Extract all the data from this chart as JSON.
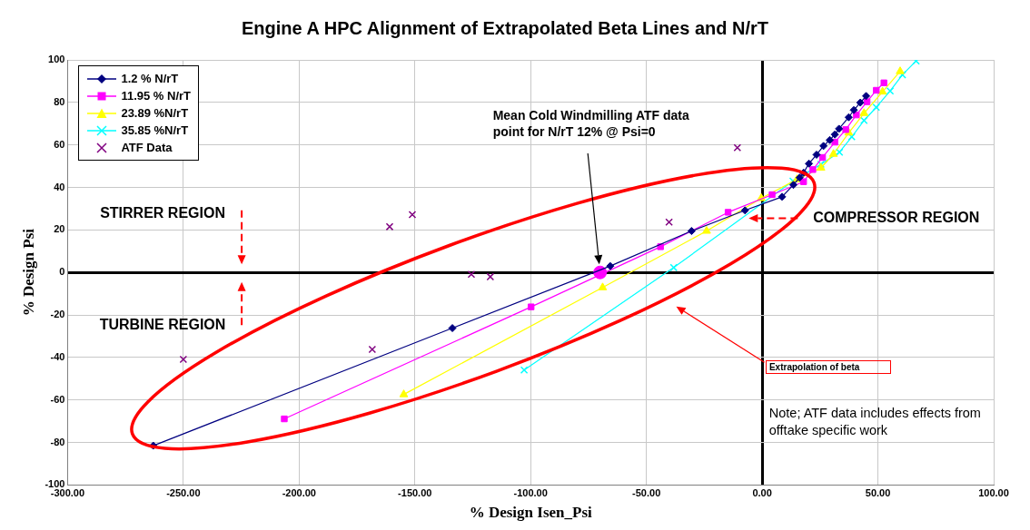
{
  "chart_data": {
    "type": "line",
    "title": "Engine A HPC Alignment of Extrapolated Beta Lines and N/rT",
    "xlabel": "% Design Isen_Psi",
    "ylabel": "% Design Psi",
    "xlim": [
      -300,
      100
    ],
    "ylim": [
      -100,
      100
    ],
    "xticks": [
      {
        "value": -300,
        "label": "-300.00"
      },
      {
        "value": -250,
        "label": "-250.00"
      },
      {
        "value": -200,
        "label": "-200.00"
      },
      {
        "value": -150,
        "label": "-150.00"
      },
      {
        "value": -100,
        "label": "-100.00"
      },
      {
        "value": -50,
        "label": "-50.00"
      },
      {
        "value": 0,
        "label": "0.00"
      },
      {
        "value": 50,
        "label": "50.00"
      },
      {
        "value": 100,
        "label": "100.00"
      }
    ],
    "yticks": [
      -100,
      -80,
      -60,
      -40,
      -20,
      0,
      20,
      40,
      60,
      80,
      100
    ],
    "grid": true,
    "legend": "top left",
    "series": [
      {
        "name": "1.2 % N/rT",
        "type": "line",
        "marker": "diamond",
        "color": "#000080",
        "x": [
          -263,
          -133.8,
          -65.6,
          -30.5,
          -7.4,
          8.6,
          13.5,
          16.2,
          17.9,
          20.2,
          23.5,
          26.5,
          29.2,
          31.4,
          33.2,
          37.4,
          39.6,
          42.4,
          44.9
        ],
        "values": [
          -81.5,
          -26.2,
          3,
          19.5,
          29.2,
          35.6,
          41.2,
          44.6,
          46.9,
          51.2,
          55.4,
          59.5,
          62.3,
          64.9,
          67.6,
          73,
          76.4,
          79.9,
          83
        ]
      },
      {
        "name": "11.95 % N/rT",
        "type": "line",
        "marker": "square",
        "color": "#ff00ff",
        "x": [
          -206.4,
          -99.8,
          -43.9,
          -14.7,
          4.3,
          17.9,
          21.9,
          26.1,
          31.4,
          36.1,
          40.7,
          45.3,
          49.3,
          52.6
        ],
        "values": [
          -68.9,
          -16.2,
          12.1,
          28.3,
          36.6,
          42.7,
          48.4,
          54.1,
          61.3,
          67.2,
          74.1,
          80.3,
          85.7,
          89.2
        ]
      },
      {
        "name": "23.89 %N/rT",
        "type": "line",
        "marker": "triangle",
        "color": "#ffff00",
        "x": [
          -154.8,
          -68.9,
          -24,
          -0.4,
          15.1,
          25.4,
          30.8,
          37.4,
          44,
          52,
          59.6
        ],
        "values": [
          -57.4,
          -7.1,
          19.5,
          34.9,
          43.8,
          49.2,
          55.7,
          65.7,
          74.9,
          85,
          94.6
        ]
      },
      {
        "name": "35.85 %N/rT",
        "type": "line",
        "marker": "cross",
        "color": "#00ffff",
        "x": [
          -102.8,
          -38.2,
          13.3,
          25.4,
          33.4,
          38.7,
          44,
          49.3,
          55.3,
          60.6,
          66.5
        ],
        "values": [
          -45.9,
          2.3,
          43,
          50.9,
          56.6,
          63.8,
          71.5,
          77.7,
          85.4,
          93,
          99.5
        ]
      },
      {
        "name": "ATF Data",
        "type": "scatter",
        "marker": "cross",
        "color": "#800080",
        "x": [
          -250,
          -168.4,
          -160.9,
          -151.1,
          -125.6,
          -117.4,
          -40.2,
          -10.7
        ],
        "values": [
          -40.9,
          -36.2,
          21.5,
          27.2,
          -0.9,
          -2,
          23.7,
          58.7
        ]
      },
      {
        "type": "scatter",
        "marker": "circle",
        "color": "#ff00ff",
        "x": [
          -70
        ],
        "values": [
          0
        ]
      }
    ],
    "annotations": [
      "STIRRER REGION",
      "TURBINE REGION",
      "COMPRESSOR REGION",
      "Mean Cold Windmilling ATF data point for N/rT 12% @ Psi=0",
      "Extrapolation of beta",
      "Note; ATF data includes effects from offtake specific work"
    ]
  }
}
